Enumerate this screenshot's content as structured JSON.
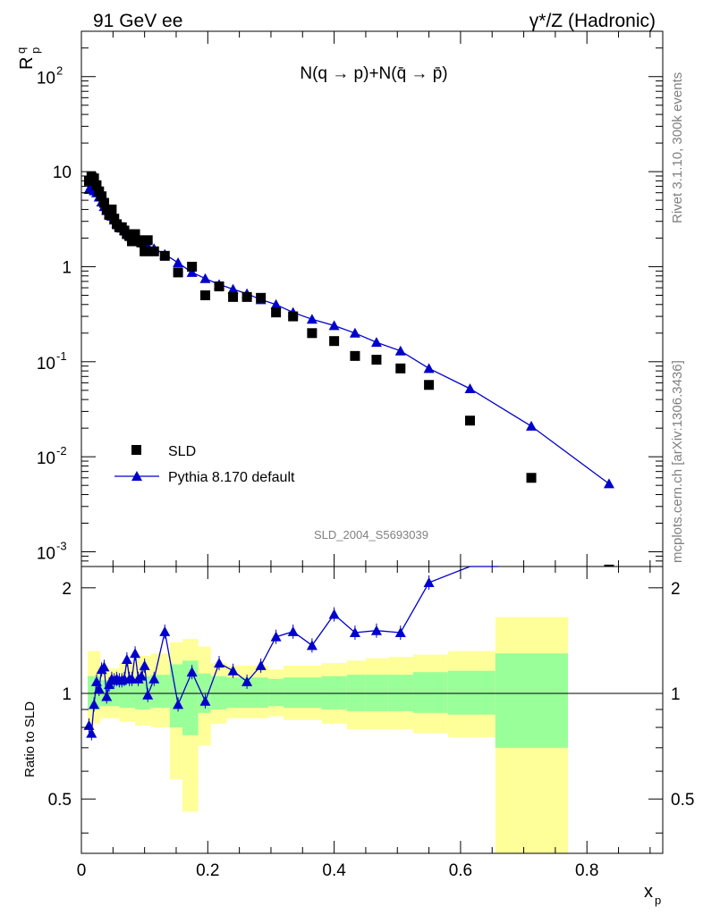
{
  "header": {
    "left": "91 GeV ee",
    "right": "γ*/Z (Hadronic)"
  },
  "side": {
    "rivet": "Rivet 3.1.10,  300k events",
    "mcplots": "mcplots.cern.ch [arXiv:1306.3436]"
  },
  "chart_data": {
    "type": "scatter",
    "title": "N(q → p)+N(q̄ → p̄)",
    "analysis_label": "SLD_2004_S5693039",
    "xlabel": "x",
    "xlabel_sub": "p",
    "ylabel": "R",
    "ylabel_sup": "q",
    "ylabel_sub": "p",
    "ratio_ylabel": "Ratio to SLD",
    "xlim": [
      0,
      0.92
    ],
    "ylim": [
      0.0007,
      300
    ],
    "yscale": "log",
    "ratio_ylim": [
      0.35,
      2.3
    ],
    "ratio_yscale": "log",
    "x_ticks": [
      "0",
      "0.2",
      "0.4",
      "0.6",
      "0.8"
    ],
    "x_tick_values": [
      0,
      0.2,
      0.4,
      0.6,
      0.8
    ],
    "y_ticks": [
      {
        "base": "10",
        "exp": "-3",
        "value": 0.001
      },
      {
        "base": "10",
        "exp": "-2",
        "value": 0.01
      },
      {
        "base": "10",
        "exp": "-1",
        "value": 0.1
      },
      {
        "base": "1",
        "exp": "",
        "value": 1
      },
      {
        "base": "10",
        "exp": "",
        "value": 10
      },
      {
        "base": "10",
        "exp": "2",
        "value": 100
      }
    ],
    "ratio_ticks": [
      {
        "label": "0.5",
        "value": 0.5
      },
      {
        "label": "1",
        "value": 1
      },
      {
        "label": "2",
        "value": 2
      }
    ],
    "legend": {
      "position": "bottom-left"
    },
    "series": [
      {
        "name": "SLD",
        "marker": "square",
        "color": "#000000",
        "x": [
          0.012,
          0.016,
          0.02,
          0.024,
          0.028,
          0.032,
          0.036,
          0.04,
          0.044,
          0.048,
          0.052,
          0.056,
          0.06,
          0.064,
          0.068,
          0.072,
          0.076,
          0.08,
          0.085,
          0.09,
          0.095,
          0.1,
          0.105,
          0.115,
          0.132,
          0.153,
          0.175,
          0.196,
          0.218,
          0.24,
          0.262,
          0.284,
          0.308,
          0.335,
          0.365,
          0.4,
          0.433,
          0.467,
          0.505,
          0.55,
          0.615,
          0.712,
          0.835
        ],
        "y": [
          8.0,
          8.8,
          8.5,
          7.2,
          6.2,
          5.5,
          4.7,
          4.0,
          3.5,
          4.0,
          3.2,
          2.8,
          2.6,
          2.6,
          2.4,
          2.2,
          2.1,
          1.85,
          2.2,
          1.9,
          1.8,
          1.45,
          1.9,
          1.45,
          1.3,
          0.87,
          1.0,
          0.5,
          0.62,
          0.48,
          0.48,
          0.47,
          0.33,
          0.3,
          0.2,
          0.165,
          0.115,
          0.105,
          0.085,
          0.057,
          0.024,
          0.006,
          0.00065
        ]
      },
      {
        "name": "Pythia 8.170 default",
        "marker": "triangle",
        "color": "#0000cc",
        "x": [
          0.012,
          0.016,
          0.02,
          0.024,
          0.028,
          0.032,
          0.036,
          0.04,
          0.044,
          0.048,
          0.052,
          0.056,
          0.06,
          0.064,
          0.068,
          0.072,
          0.076,
          0.08,
          0.085,
          0.09,
          0.095,
          0.1,
          0.105,
          0.115,
          0.132,
          0.153,
          0.175,
          0.196,
          0.218,
          0.24,
          0.262,
          0.284,
          0.308,
          0.335,
          0.365,
          0.4,
          0.433,
          0.467,
          0.505,
          0.55,
          0.615,
          0.712,
          0.835
        ],
        "y": [
          6.5,
          6.7,
          6.3,
          6.0,
          5.4,
          4.8,
          4.3,
          3.9,
          3.6,
          3.4,
          3.1,
          2.9,
          2.7,
          2.55,
          2.4,
          2.25,
          2.15,
          2.0,
          1.95,
          1.85,
          1.8,
          1.75,
          1.65,
          1.55,
          1.35,
          1.1,
          0.87,
          0.75,
          0.65,
          0.58,
          0.52,
          0.45,
          0.4,
          0.33,
          0.28,
          0.24,
          0.2,
          0.16,
          0.13,
          0.085,
          0.052,
          0.021,
          0.0052
        ]
      }
    ],
    "ratio_series": {
      "name": "Pythia 8.170 default",
      "color": "#0000cc",
      "x": [
        0.012,
        0.016,
        0.02,
        0.024,
        0.028,
        0.032,
        0.036,
        0.04,
        0.044,
        0.048,
        0.052,
        0.056,
        0.06,
        0.064,
        0.068,
        0.072,
        0.076,
        0.08,
        0.085,
        0.09,
        0.095,
        0.1,
        0.105,
        0.115,
        0.132,
        0.153,
        0.175,
        0.196,
        0.218,
        0.24,
        0.262,
        0.284,
        0.308,
        0.335,
        0.365,
        0.4,
        0.433,
        0.467,
        0.505,
        0.55,
        0.615,
        0.66
      ],
      "y": [
        0.81,
        0.77,
        0.93,
        1.08,
        1.03,
        1.17,
        1.19,
        0.98,
        1.06,
        1.1,
        1.09,
        1.1,
        1.09,
        1.09,
        1.1,
        1.25,
        1.1,
        1.1,
        1.3,
        1.1,
        1.12,
        1.2,
        0.99,
        1.1,
        1.5,
        0.93,
        1.15,
        0.95,
        1.22,
        1.16,
        1.08,
        1.2,
        1.45,
        1.5,
        1.37,
        1.68,
        1.49,
        1.51,
        1.49,
        2.07,
        2.3,
        2.3
      ]
    },
    "uncertainty_bands": {
      "inner_color": "#99ff99",
      "outer_color": "#ffff99",
      "bins": [
        {
          "x0": 0.01,
          "x1": 0.03,
          "lo_in": 0.9,
          "hi_in": 1.12,
          "lo_out": 0.82,
          "hi_out": 1.32
        },
        {
          "x0": 0.03,
          "x1": 0.06,
          "lo_in": 0.92,
          "hi_in": 1.09,
          "lo_out": 0.85,
          "hi_out": 1.18
        },
        {
          "x0": 0.06,
          "x1": 0.085,
          "lo_in": 0.91,
          "hi_in": 1.1,
          "lo_out": 0.83,
          "hi_out": 1.22
        },
        {
          "x0": 0.085,
          "x1": 0.11,
          "lo_in": 0.9,
          "hi_in": 1.12,
          "lo_out": 0.81,
          "hi_out": 1.28
        },
        {
          "x0": 0.11,
          "x1": 0.14,
          "lo_in": 0.91,
          "hi_in": 1.13,
          "lo_out": 0.8,
          "hi_out": 1.3
        },
        {
          "x0": 0.14,
          "x1": 0.16,
          "lo_in": 0.8,
          "hi_in": 1.21,
          "lo_out": 0.57,
          "hi_out": 1.4
        },
        {
          "x0": 0.16,
          "x1": 0.185,
          "lo_in": 0.76,
          "hi_in": 1.24,
          "lo_out": 0.46,
          "hi_out": 1.43
        },
        {
          "x0": 0.185,
          "x1": 0.205,
          "lo_in": 0.88,
          "hi_in": 1.14,
          "lo_out": 0.71,
          "hi_out": 1.36
        },
        {
          "x0": 0.205,
          "x1": 0.23,
          "lo_in": 0.9,
          "hi_in": 1.12,
          "lo_out": 0.82,
          "hi_out": 1.22
        },
        {
          "x0": 0.23,
          "x1": 0.296,
          "lo_in": 0.91,
          "hi_in": 1.11,
          "lo_out": 0.85,
          "hi_out": 1.2
        },
        {
          "x0": 0.296,
          "x1": 0.32,
          "lo_in": 0.92,
          "hi_in": 1.1,
          "lo_out": 0.86,
          "hi_out": 1.17
        },
        {
          "x0": 0.32,
          "x1": 0.38,
          "lo_in": 0.91,
          "hi_in": 1.11,
          "lo_out": 0.84,
          "hi_out": 1.2
        },
        {
          "x0": 0.38,
          "x1": 0.42,
          "lo_in": 0.9,
          "hi_in": 1.12,
          "lo_out": 0.82,
          "hi_out": 1.22
        },
        {
          "x0": 0.42,
          "x1": 0.45,
          "lo_in": 0.89,
          "hi_in": 1.13,
          "lo_out": 0.79,
          "hi_out": 1.24
        },
        {
          "x0": 0.45,
          "x1": 0.485,
          "lo_in": 0.89,
          "hi_in": 1.13,
          "lo_out": 0.79,
          "hi_out": 1.26
        },
        {
          "x0": 0.485,
          "x1": 0.525,
          "lo_in": 0.89,
          "hi_in": 1.13,
          "lo_out": 0.79,
          "hi_out": 1.27
        },
        {
          "x0": 0.525,
          "x1": 0.58,
          "lo_in": 0.88,
          "hi_in": 1.15,
          "lo_out": 0.77,
          "hi_out": 1.29
        },
        {
          "x0": 0.58,
          "x1": 0.655,
          "lo_in": 0.87,
          "hi_in": 1.16,
          "lo_out": 0.75,
          "hi_out": 1.32
        },
        {
          "x0": 0.655,
          "x1": 0.77,
          "lo_in": 0.7,
          "hi_in": 1.3,
          "lo_out": 0.35,
          "hi_out": 1.65
        }
      ]
    }
  }
}
